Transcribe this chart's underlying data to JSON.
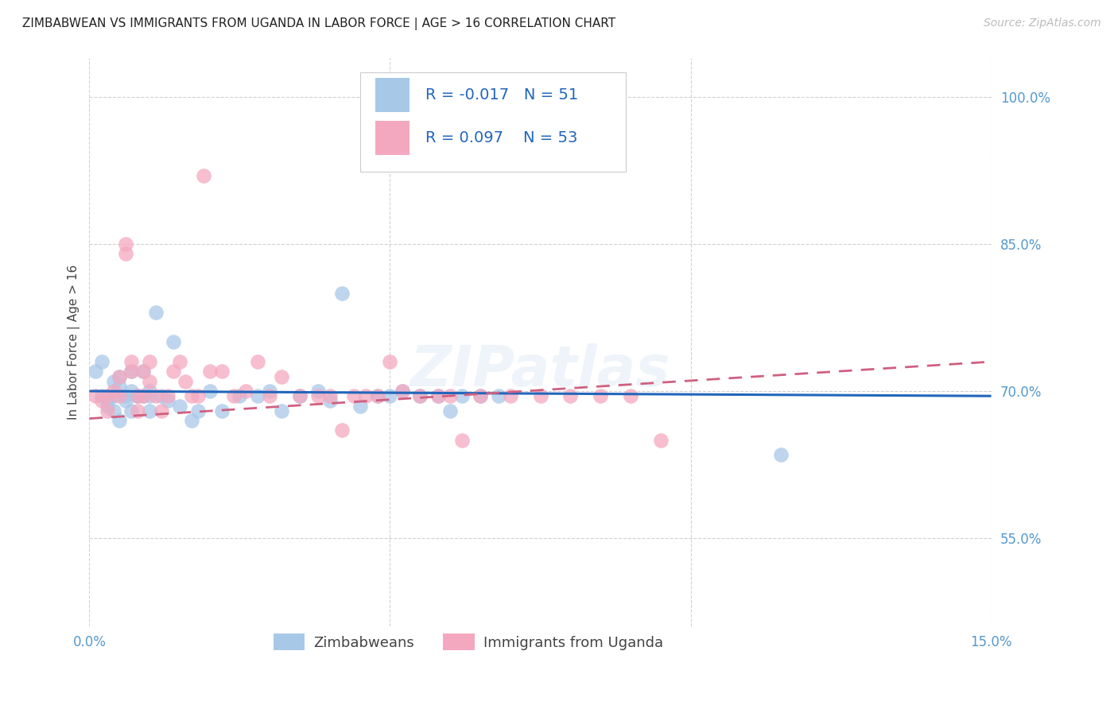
{
  "title": "ZIMBABWEAN VS IMMIGRANTS FROM UGANDA IN LABOR FORCE | AGE > 16 CORRELATION CHART",
  "source": "Source: ZipAtlas.com",
  "ylabel": "In Labor Force | Age > 16",
  "x_min": 0.0,
  "x_max": 0.15,
  "y_min": 0.46,
  "y_max": 1.04,
  "x_ticks": [
    0.0,
    0.05,
    0.1,
    0.15
  ],
  "x_tick_labels": [
    "0.0%",
    "",
    "",
    "15.0%"
  ],
  "y_ticks": [
    0.55,
    0.7,
    0.85,
    1.0
  ],
  "y_tick_labels_right": [
    "55.0%",
    "70.0%",
    "85.0%",
    "100.0%"
  ],
  "legend_labels": [
    "Zimbabweans",
    "Immigrants from Uganda"
  ],
  "zim_R": "-0.017",
  "zim_N": "51",
  "uga_R": "0.097",
  "uga_N": "53",
  "zim_color": "#a8c8e8",
  "uga_color": "#f4a8c0",
  "zim_line_color": "#2266bb",
  "uga_line_color": "#d06080",
  "watermark": "ZIPatlas",
  "zim_x": [
    0.001,
    0.002,
    0.002,
    0.003,
    0.003,
    0.004,
    0.004,
    0.004,
    0.005,
    0.005,
    0.005,
    0.006,
    0.006,
    0.007,
    0.007,
    0.007,
    0.008,
    0.008,
    0.009,
    0.009,
    0.01,
    0.01,
    0.01,
    0.011,
    0.012,
    0.013,
    0.014,
    0.015,
    0.017,
    0.018,
    0.02,
    0.022,
    0.025,
    0.028,
    0.03,
    0.032,
    0.035,
    0.038,
    0.04,
    0.042,
    0.045,
    0.048,
    0.05,
    0.052,
    0.055,
    0.058,
    0.06,
    0.062,
    0.065,
    0.068,
    0.115
  ],
  "zim_y": [
    0.72,
    0.73,
    0.695,
    0.69,
    0.685,
    0.68,
    0.71,
    0.695,
    0.67,
    0.715,
    0.705,
    0.69,
    0.695,
    0.72,
    0.7,
    0.68,
    0.695,
    0.695,
    0.695,
    0.72,
    0.7,
    0.68,
    0.695,
    0.78,
    0.695,
    0.69,
    0.75,
    0.685,
    0.67,
    0.68,
    0.7,
    0.68,
    0.695,
    0.695,
    0.7,
    0.68,
    0.695,
    0.7,
    0.69,
    0.8,
    0.685,
    0.695,
    0.695,
    0.7,
    0.695,
    0.695,
    0.68,
    0.695,
    0.695,
    0.695,
    0.635
  ],
  "uga_x": [
    0.001,
    0.002,
    0.003,
    0.003,
    0.004,
    0.005,
    0.005,
    0.006,
    0.006,
    0.007,
    0.007,
    0.008,
    0.008,
    0.009,
    0.009,
    0.01,
    0.01,
    0.011,
    0.012,
    0.013,
    0.014,
    0.015,
    0.016,
    0.017,
    0.018,
    0.019,
    0.02,
    0.022,
    0.024,
    0.026,
    0.028,
    0.03,
    0.032,
    0.035,
    0.038,
    0.04,
    0.042,
    0.044,
    0.046,
    0.048,
    0.05,
    0.052,
    0.055,
    0.058,
    0.06,
    0.062,
    0.065,
    0.07,
    0.075,
    0.08,
    0.085,
    0.09,
    0.095
  ],
  "uga_y": [
    0.695,
    0.69,
    0.68,
    0.695,
    0.7,
    0.715,
    0.695,
    0.85,
    0.84,
    0.73,
    0.72,
    0.695,
    0.68,
    0.695,
    0.72,
    0.73,
    0.71,
    0.695,
    0.68,
    0.695,
    0.72,
    0.73,
    0.71,
    0.695,
    0.695,
    0.92,
    0.72,
    0.72,
    0.695,
    0.7,
    0.73,
    0.695,
    0.715,
    0.695,
    0.695,
    0.695,
    0.66,
    0.695,
    0.695,
    0.695,
    0.73,
    0.7,
    0.695,
    0.695,
    0.695,
    0.65,
    0.695,
    0.695,
    0.695,
    0.695,
    0.695,
    0.695,
    0.65
  ],
  "zim_line_y0": 0.7,
  "zim_line_y1": 0.695,
  "uga_line_y0": 0.672,
  "uga_line_y1": 0.73
}
